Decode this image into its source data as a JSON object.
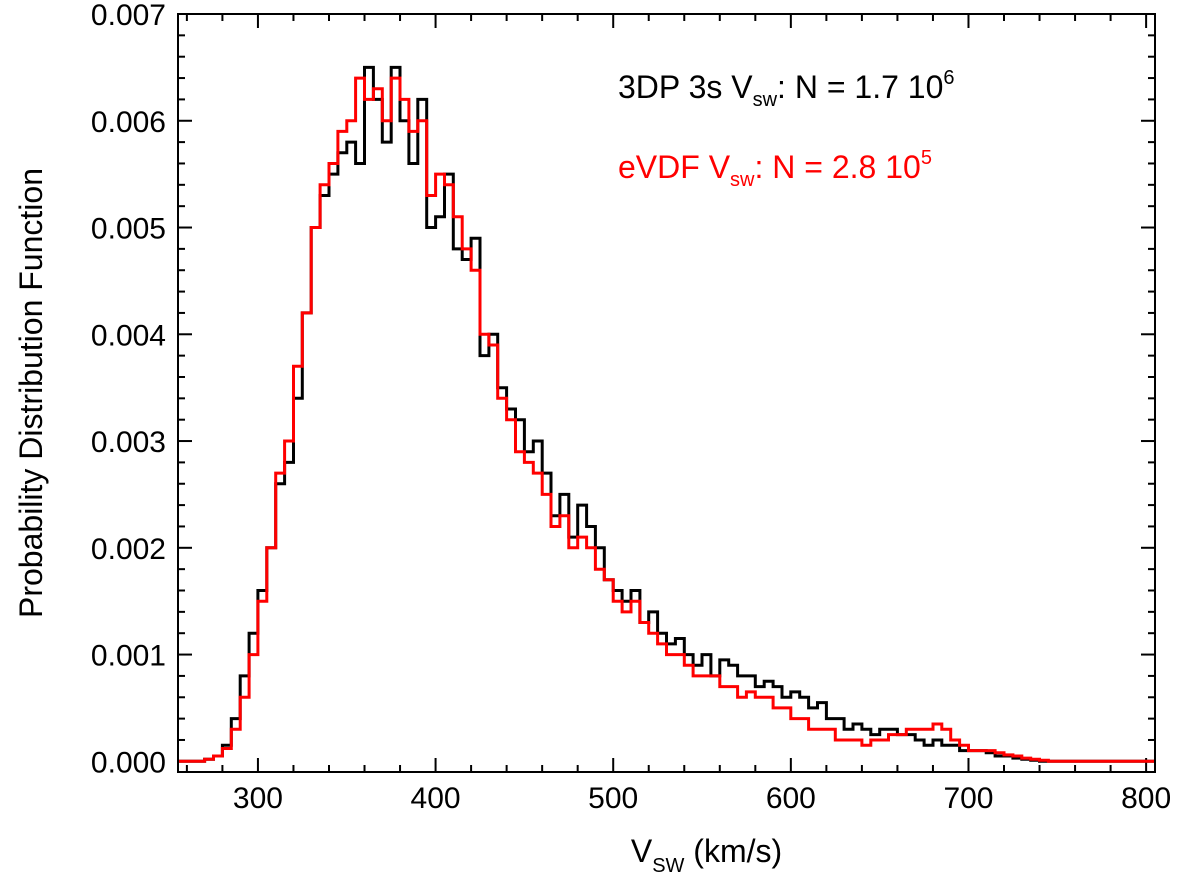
{
  "chart_data": {
    "type": "line",
    "style": "step-histogram",
    "xlabel_main": "V",
    "xlabel_sub": "SW",
    "xlabel_rest": " (km/s)",
    "ylabel": "Probability Distribution Function",
    "xlim": [
      255,
      805
    ],
    "ylim": [
      -0.0001,
      0.007
    ],
    "xticks": [
      300,
      400,
      500,
      600,
      700,
      800
    ],
    "xtick_labels": [
      "300",
      "400",
      "500",
      "600",
      "700",
      "800"
    ],
    "yticks": [
      0.0,
      0.001,
      0.002,
      0.003,
      0.004,
      0.005,
      0.006,
      0.007
    ],
    "ytick_labels": [
      "0.000",
      "0.001",
      "0.002",
      "0.003",
      "0.004",
      "0.005",
      "0.006",
      "0.007"
    ],
    "bin_width": 5,
    "x_start": 255,
    "series": [
      {
        "name": "3DP 3s Vsw",
        "color": "#000000",
        "legend_prefix": "3DP 3s V",
        "legend_sub": "sw",
        "legend_mid": ": N = 1.7 10",
        "legend_sup": "6",
        "values": [
          0.0,
          0.0,
          0.0,
          2e-05,
          5e-05,
          0.00015,
          0.0004,
          0.0008,
          0.0012,
          0.0016,
          0.002,
          0.0026,
          0.0028,
          0.0034,
          0.0042,
          0.005,
          0.0053,
          0.0055,
          0.0057,
          0.0058,
          0.0056,
          0.0065,
          0.0062,
          0.0058,
          0.0065,
          0.006,
          0.0056,
          0.0062,
          0.005,
          0.0051,
          0.0055,
          0.0048,
          0.0047,
          0.0049,
          0.0038,
          0.004,
          0.0035,
          0.0033,
          0.0032,
          0.0029,
          0.003,
          0.0027,
          0.0023,
          0.0025,
          0.0021,
          0.0024,
          0.0022,
          0.002,
          0.0017,
          0.0016,
          0.0015,
          0.0016,
          0.0013,
          0.0014,
          0.0012,
          0.0011,
          0.00115,
          0.001,
          0.0009,
          0.001,
          0.0008,
          0.00095,
          0.0009,
          0.0008,
          0.0008,
          0.0007,
          0.00075,
          0.0007,
          0.0006,
          0.00065,
          0.0006,
          0.0005,
          0.00055,
          0.0004,
          0.0004,
          0.0003,
          0.00035,
          0.0003,
          0.00025,
          0.0003,
          0.0003,
          0.00025,
          0.00025,
          0.0002,
          0.00015,
          0.0002,
          0.00015,
          0.00015,
          0.0001,
          0.0001,
          0.0001,
          8e-05,
          5e-05,
          5e-05,
          3e-05,
          2e-05,
          1e-05,
          0.0,
          0.0,
          0.0,
          0.0,
          0.0,
          0.0,
          0.0,
          0.0,
          0.0,
          0.0,
          0.0,
          0.0,
          0.0
        ]
      },
      {
        "name": "eVDF Vsw",
        "color": "#ff0000",
        "legend_prefix": "eVDF V",
        "legend_sub": "sw",
        "legend_mid": ": N = 2.8 10",
        "legend_sup": "5",
        "values": [
          0.0,
          0.0,
          0.0,
          2e-05,
          5e-05,
          0.00012,
          0.0003,
          0.0006,
          0.001,
          0.0015,
          0.002,
          0.0027,
          0.003,
          0.0037,
          0.0042,
          0.005,
          0.0054,
          0.0056,
          0.0059,
          0.006,
          0.0064,
          0.0062,
          0.0063,
          0.006,
          0.0064,
          0.0062,
          0.0059,
          0.006,
          0.0053,
          0.0055,
          0.0054,
          0.0051,
          0.0048,
          0.0046,
          0.004,
          0.0039,
          0.0034,
          0.0032,
          0.0029,
          0.0028,
          0.0027,
          0.0025,
          0.0022,
          0.0023,
          0.002,
          0.0021,
          0.002,
          0.0018,
          0.0017,
          0.0015,
          0.0014,
          0.0015,
          0.0013,
          0.0012,
          0.0011,
          0.001,
          0.001,
          0.0009,
          0.0008,
          0.0008,
          0.0008,
          0.0007,
          0.0007,
          0.0006,
          0.00065,
          0.0006,
          0.0006,
          0.0005,
          0.0005,
          0.0004,
          0.0004,
          0.0003,
          0.0003,
          0.0003,
          0.0002,
          0.0002,
          0.0002,
          0.00015,
          0.0002,
          0.0002,
          0.00025,
          0.00025,
          0.0003,
          0.0003,
          0.0003,
          0.00035,
          0.0003,
          0.0002,
          0.00015,
          0.0001,
          0.0001,
          0.0001,
          8e-05,
          6e-05,
          5e-05,
          3e-05,
          2e-05,
          1e-05,
          0.0,
          0.0,
          0.0,
          0.0,
          0.0,
          0.0,
          0.0,
          0.0,
          0.0,
          0.0,
          0.0,
          0.0
        ]
      }
    ]
  }
}
